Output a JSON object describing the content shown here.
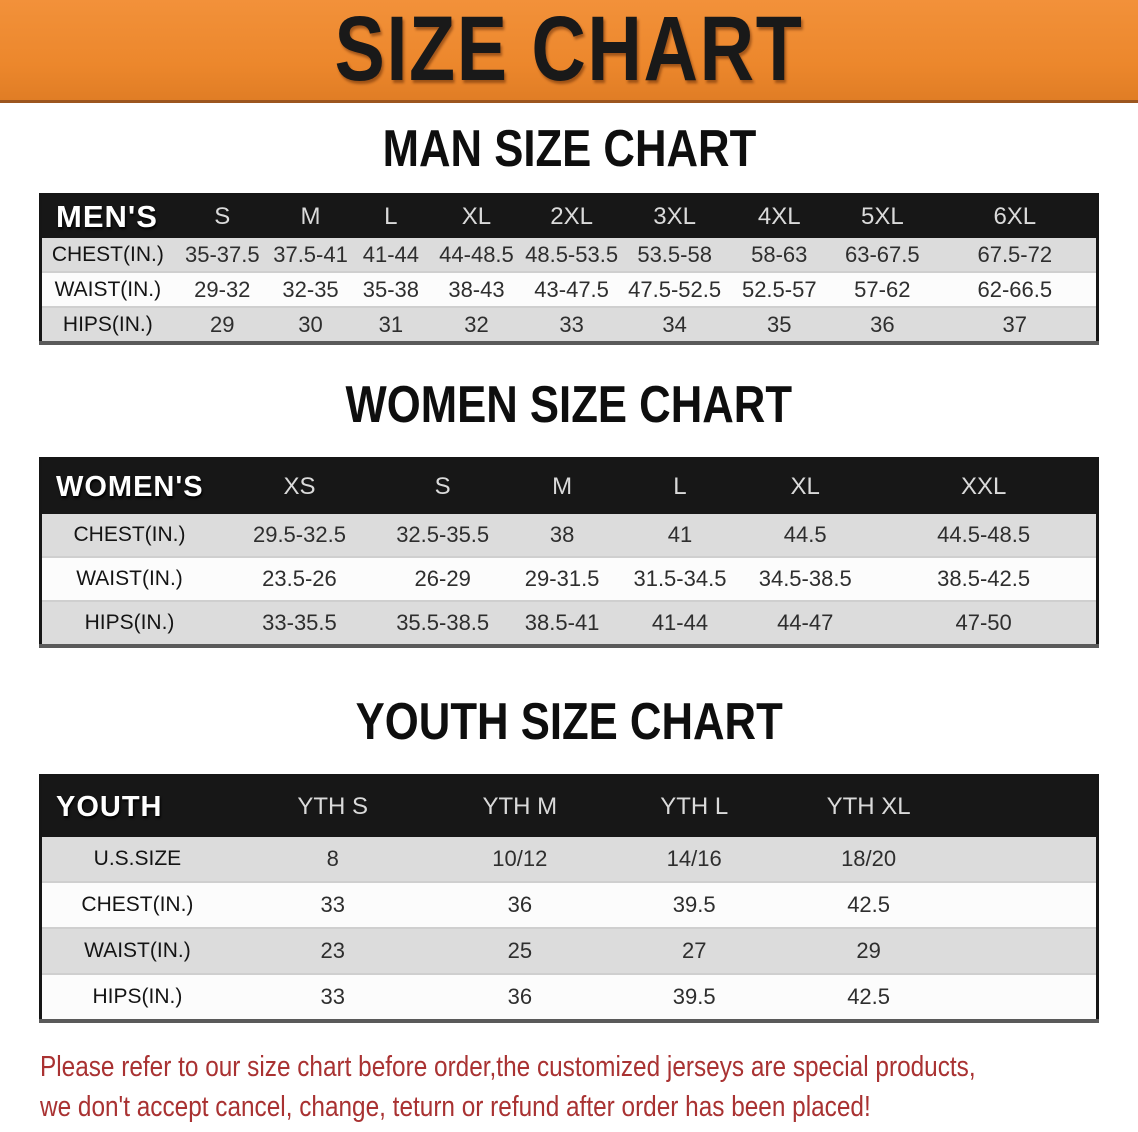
{
  "banner": {
    "title": "SIZE CHART",
    "background_color": "#EC872C",
    "text_color": "#191919"
  },
  "tables": {
    "men": {
      "title": "MAN SIZE CHART",
      "header": [
        "MEN'S",
        "S",
        "M",
        "L",
        "XL",
        "2XL",
        "3XL",
        "4XL",
        "5XL",
        "6XL"
      ],
      "rows": [
        {
          "label": "CHEST(IN.)",
          "values": [
            "35-37.5",
            "37.5-41",
            "41-44",
            "44-48.5",
            "48.5-53.5",
            "53.5-58",
            "58-63",
            "63-67.5",
            "67.5-72"
          ]
        },
        {
          "label": "WAIST(IN.)",
          "values": [
            "29-32",
            "32-35",
            "35-38",
            "38-43",
            "43-47.5",
            "47.5-52.5",
            "52.5-57",
            "57-62",
            "62-66.5"
          ]
        },
        {
          "label": "HIPS(IN.)",
          "values": [
            "29",
            "30",
            "31",
            "32",
            "33",
            "34",
            "35",
            "36",
            "37"
          ]
        }
      ]
    },
    "women": {
      "title": "WOMEN SIZE CHART",
      "header": [
        "WOMEN'S",
        "XS",
        "S",
        "M",
        "L",
        "XL",
        "XXL"
      ],
      "rows": [
        {
          "label": "CHEST(IN.)",
          "values": [
            "29.5-32.5",
            "32.5-35.5",
            "38",
            "41",
            "44.5",
            "44.5-48.5"
          ]
        },
        {
          "label": "WAIST(IN.)",
          "values": [
            "23.5-26",
            "26-29",
            "29-31.5",
            "31.5-34.5",
            "34.5-38.5",
            "38.5-42.5"
          ]
        },
        {
          "label": "HIPS(IN.)",
          "values": [
            "33-35.5",
            "35.5-38.5",
            "38.5-41",
            "41-44",
            "44-47",
            "47-50"
          ]
        }
      ]
    },
    "youth": {
      "title": "YOUTH SIZE CHART",
      "header": [
        "YOUTH",
        "YTH S",
        "YTH M",
        "YTH L",
        "YTH XL"
      ],
      "rows": [
        {
          "label": "U.S.SIZE",
          "values": [
            "8",
            "10/12",
            "14/16",
            "18/20"
          ]
        },
        {
          "label": "CHEST(IN.)",
          "values": [
            "33",
            "36",
            "39.5",
            "42.5"
          ]
        },
        {
          "label": "WAIST(IN.)",
          "values": [
            "23",
            "25",
            "27",
            "29"
          ]
        },
        {
          "label": "HIPS(IN.)",
          "values": [
            "33",
            "36",
            "39.5",
            "42.5"
          ]
        }
      ]
    }
  },
  "footer_note": {
    "line1": "Please refer to our size chart before order,the customized jerseys are special products,",
    "line2": "we don't accept cancel, change, teturn or refund after order has been placed!",
    "text_color": "#A93232"
  },
  "colors": {
    "table_header_bg": "#171717",
    "table_header_text": "#DADADA",
    "row_stripe_gray": "#DCDCDC",
    "row_stripe_white": "#FCFCFC"
  }
}
